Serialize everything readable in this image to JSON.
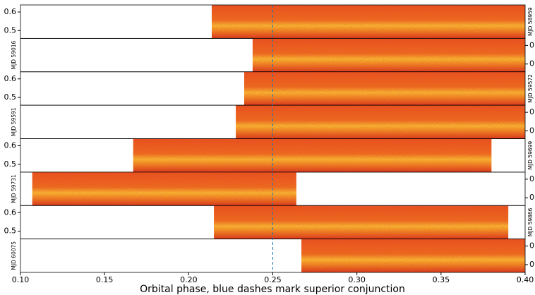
{
  "chart_data": {
    "type": "heatmap",
    "xlabel": "Orbital phase, blue dashes mark superior conjunction",
    "xlim": [
      0.1,
      0.4
    ],
    "xticks": [
      {
        "value": 0.1,
        "label": "0.10"
      },
      {
        "value": 0.15,
        "label": "0.15"
      },
      {
        "value": 0.2,
        "label": "0.20"
      },
      {
        "value": 0.25,
        "label": "0.25"
      },
      {
        "value": 0.3,
        "label": "0.30"
      },
      {
        "value": 0.35,
        "label": "0.35"
      },
      {
        "value": 0.4,
        "label": "0.40"
      }
    ],
    "ylim": [
      0.458,
      0.638
    ],
    "yticks": [
      0.6,
      0.5
    ],
    "superior_conjunction": 0.25,
    "line_color": "#1f77b4",
    "panels": [
      {
        "name": "MJD 58959",
        "phase_range": [
          0.2137,
          0.4
        ]
      },
      {
        "name": "MJD 59016",
        "phase_range": [
          0.238,
          0.4
        ]
      },
      {
        "name": "MJD 59572",
        "phase_range": [
          0.233,
          0.4
        ]
      },
      {
        "name": "MJD 59591",
        "phase_range": [
          0.228,
          0.4
        ]
      },
      {
        "name": "MJD 59699",
        "phase_range": [
          0.167,
          0.38
        ]
      },
      {
        "name": "MJD 59731",
        "phase_range": [
          0.107,
          0.264
        ]
      },
      {
        "name": "MJD 59866",
        "phase_range": [
          0.215,
          0.39
        ]
      },
      {
        "name": "MJD 60075",
        "phase_range": [
          0.267,
          0.4
        ]
      }
    ]
  }
}
